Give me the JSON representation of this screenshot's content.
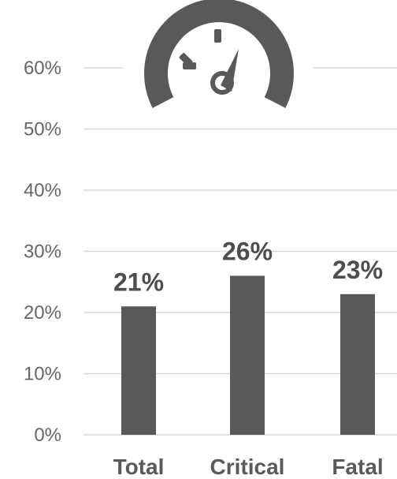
{
  "chart_data": {
    "type": "bar",
    "title": "",
    "xlabel": "",
    "ylabel": "",
    "categories": [
      "Total",
      "Critical",
      "Fatal"
    ],
    "values": [
      21,
      26,
      23
    ],
    "data_labels": [
      "21%",
      "26%",
      "23%"
    ],
    "y_ticks": [
      0,
      10,
      20,
      30,
      40,
      50,
      60
    ],
    "y_tick_labels": [
      "0%",
      "10%",
      "20%",
      "30%",
      "40%",
      "50%",
      "60%"
    ],
    "ylim": [
      0,
      60
    ],
    "grid": true,
    "legend": "none",
    "bar_color": "#595959",
    "gridline_color": "#d9d9d9",
    "decoration": "speedometer-icon"
  }
}
